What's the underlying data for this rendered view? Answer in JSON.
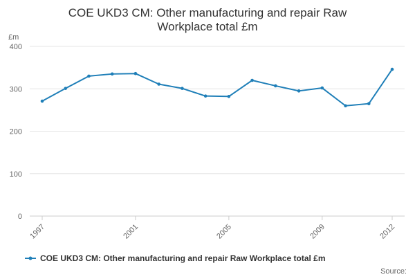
{
  "chart_data": {
    "type": "line",
    "title_lines": [
      "COE UKD3 CM: Other manufacturing and repair Raw",
      "Workplace total £m"
    ],
    "ylabel": "£m",
    "xlabel": "",
    "ylim": [
      0,
      400
    ],
    "y_ticks": [
      0,
      100,
      200,
      300,
      400
    ],
    "x_ticks": [
      1997,
      2001,
      2005,
      2009,
      2012
    ],
    "grid": true,
    "legend": "bottom",
    "series": [
      {
        "name": "COE UKD3 CM: Other manufacturing and repair Raw Workplace total £m",
        "color": "#1f7fb8",
        "x": [
          1997,
          1998,
          1999,
          2000,
          2001,
          2002,
          2003,
          2004,
          2005,
          2006,
          2007,
          2008,
          2009,
          2010,
          2011,
          2012
        ],
        "values": [
          271,
          301,
          330,
          335,
          336,
          311,
          301,
          283,
          282,
          320,
          307,
          295,
          302,
          260,
          265,
          346
        ]
      }
    ]
  },
  "source_label": "Source:"
}
